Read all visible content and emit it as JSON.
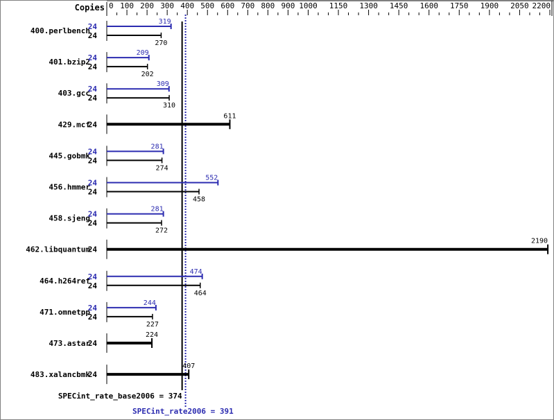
{
  "chart_data": {
    "type": "bar",
    "orientation": "horizontal",
    "axis_header": "Copies",
    "xlim": [
      0,
      2200
    ],
    "ticks": [
      0,
      100,
      200,
      300,
      400,
      500,
      600,
      700,
      800,
      900,
      1000,
      1150,
      1300,
      1450,
      1600,
      1750,
      1900,
      2050,
      2200
    ],
    "colors": {
      "base": "#000000",
      "peak": "#2b2bb0"
    },
    "categories": [
      "400.perlbench",
      "401.bzip2",
      "403.gcc",
      "429.mcf",
      "445.gobmk",
      "456.hmmer",
      "458.sjeng",
      "462.libquantum",
      "464.h264ref",
      "471.omnetpp",
      "473.astar",
      "483.xalancbmk"
    ],
    "series": [
      {
        "key": "peak",
        "copies": [
          24,
          24,
          24,
          null,
          24,
          24,
          24,
          null,
          24,
          24,
          null,
          null
        ],
        "values": [
          319,
          209,
          309,
          null,
          281,
          552,
          281,
          null,
          474,
          244,
          null,
          null
        ]
      },
      {
        "key": "base",
        "copies": [
          24,
          24,
          24,
          24,
          24,
          24,
          24,
          24,
          24,
          24,
          24,
          24
        ],
        "values": [
          270,
          202,
          310,
          611,
          274,
          458,
          272,
          2190,
          464,
          227,
          224,
          407
        ]
      }
    ],
    "reference_lines": [
      {
        "key": "base",
        "label": "SPECint_rate_base2006 = 374",
        "value": 374
      },
      {
        "key": "peak",
        "label": "SPECint_rate2006 = 391",
        "value": 391
      }
    ]
  }
}
